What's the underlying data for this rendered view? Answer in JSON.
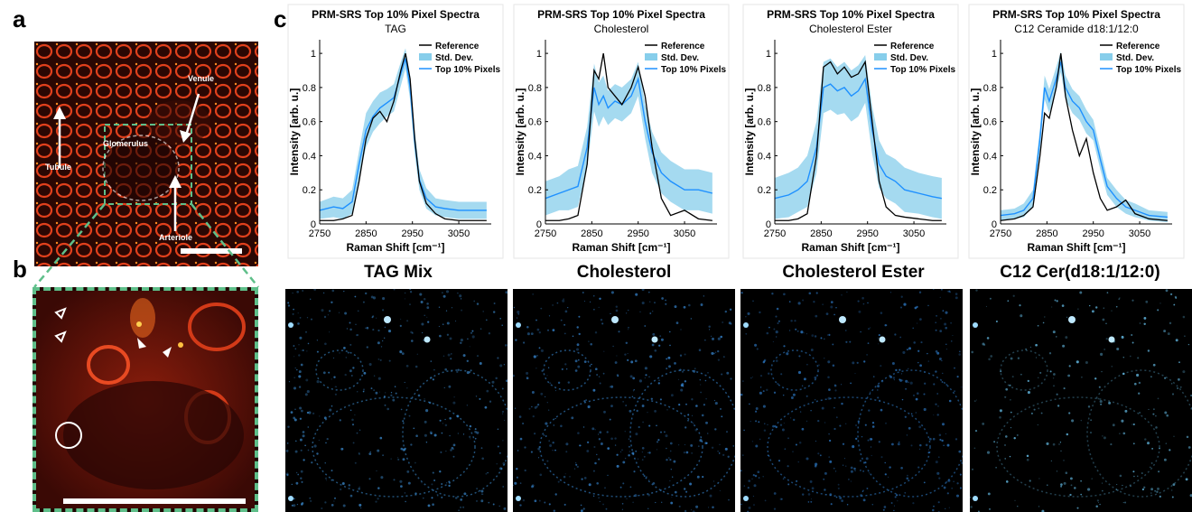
{
  "panels": {
    "a": "a",
    "b": "b",
    "c": "c"
  },
  "panel_a": {
    "labels": {
      "venule": "Venule",
      "glomerulus": "Glomerulus",
      "tubule": "Tubule",
      "arteriole": "Arteriole"
    }
  },
  "image_labels": [
    "TAG Mix",
    "Cholesterol",
    "Cholesterol Ester",
    "C12 Cer(d18:1/12:0)"
  ],
  "colors": {
    "reference": "#000000",
    "std_dev": "#87ceeb",
    "top10": "#1e90ff",
    "inset_frame": "#5fbf8a",
    "tissue": "#c8281a"
  },
  "chart_data": [
    {
      "type": "line",
      "title": "PRM-SRS Top 10% Pixel Spectra",
      "subtitle": "TAG",
      "xlabel": "Raman Shift [cm⁻¹]",
      "ylabel": "Intensity [arb. u.]",
      "xlim": [
        2750,
        3120
      ],
      "ylim": [
        0,
        1.08
      ],
      "xticks": [
        "2750",
        "2850",
        "2950",
        "3050"
      ],
      "yticks": [
        "0",
        "0.2",
        "0.4",
        "0.6",
        "0.8",
        "1"
      ],
      "legend": [
        "Reference",
        "Std. Dev.",
        "Top 10% Pixels"
      ],
      "legend_position": "top-right",
      "x": [
        2750,
        2780,
        2800,
        2820,
        2835,
        2850,
        2865,
        2880,
        2895,
        2910,
        2925,
        2935,
        2945,
        2955,
        2965,
        2980,
        3000,
        3020,
        3050,
        3080,
        3110
      ],
      "series": [
        {
          "name": "Reference",
          "values": [
            0.02,
            0.02,
            0.03,
            0.05,
            0.25,
            0.5,
            0.62,
            0.66,
            0.6,
            0.72,
            0.9,
            1.0,
            0.85,
            0.5,
            0.25,
            0.12,
            0.06,
            0.03,
            0.02,
            0.02,
            0.02
          ]
        },
        {
          "name": "Top 10% Pixels",
          "values": [
            0.08,
            0.1,
            0.09,
            0.13,
            0.35,
            0.55,
            0.63,
            0.68,
            0.71,
            0.74,
            0.88,
            0.97,
            0.8,
            0.48,
            0.26,
            0.15,
            0.1,
            0.09,
            0.08,
            0.08,
            0.08
          ]
        },
        {
          "name": "Std. Dev.",
          "values": [
            0.05,
            0.06,
            0.06,
            0.07,
            0.08,
            0.1,
            0.09,
            0.09,
            0.08,
            0.08,
            0.07,
            0.06,
            0.07,
            0.07,
            0.06,
            0.06,
            0.05,
            0.05,
            0.05,
            0.05,
            0.05
          ]
        }
      ]
    },
    {
      "type": "line",
      "title": "PRM-SRS Top 10% Pixel Spectra",
      "subtitle": "Cholesterol",
      "xlabel": "Raman Shift [cm⁻¹]",
      "ylabel": "Intensity [arb. u.]",
      "xlim": [
        2750,
        3120
      ],
      "ylim": [
        0,
        1.08
      ],
      "xticks": [
        "2750",
        "2850",
        "2950",
        "3050"
      ],
      "yticks": [
        "0",
        "0.2",
        "0.4",
        "0.6",
        "0.8",
        "1"
      ],
      "legend": [
        "Reference",
        "Std. Dev.",
        "Top 10% Pixels"
      ],
      "legend_position": "top-right",
      "x": [
        2750,
        2780,
        2800,
        2820,
        2840,
        2855,
        2865,
        2875,
        2885,
        2900,
        2915,
        2935,
        2950,
        2965,
        2980,
        3000,
        3020,
        3050,
        3080,
        3110
      ],
      "series": [
        {
          "name": "Reference",
          "values": [
            0.02,
            0.02,
            0.03,
            0.05,
            0.35,
            0.9,
            0.85,
            1.0,
            0.8,
            0.75,
            0.7,
            0.8,
            0.92,
            0.75,
            0.45,
            0.15,
            0.05,
            0.08,
            0.03,
            0.02
          ]
        },
        {
          "name": "Top 10% Pixels",
          "values": [
            0.15,
            0.18,
            0.2,
            0.22,
            0.45,
            0.8,
            0.7,
            0.75,
            0.68,
            0.72,
            0.7,
            0.75,
            0.85,
            0.6,
            0.42,
            0.3,
            0.25,
            0.2,
            0.2,
            0.18
          ]
        },
        {
          "name": "Std. Dev.",
          "values": [
            0.1,
            0.1,
            0.12,
            0.12,
            0.12,
            0.14,
            0.13,
            0.12,
            0.1,
            0.1,
            0.1,
            0.1,
            0.1,
            0.1,
            0.12,
            0.12,
            0.12,
            0.12,
            0.12,
            0.12
          ]
        }
      ]
    },
    {
      "type": "line",
      "title": "PRM-SRS Top 10% Pixel Spectra",
      "subtitle": "Cholesterol Ester",
      "xlabel": "Raman Shift [cm⁻¹]",
      "ylabel": "Intensity [arb. u.]",
      "xlim": [
        2750,
        3120
      ],
      "ylim": [
        0,
        1.08
      ],
      "xticks": [
        "2750",
        "2850",
        "2950",
        "3050"
      ],
      "yticks": [
        "0",
        "0.2",
        "0.4",
        "0.6",
        "0.8",
        "1"
      ],
      "legend": [
        "Reference",
        "Std. Dev.",
        "Top 10% Pixels"
      ],
      "legend_position": "top-right",
      "x": [
        2750,
        2780,
        2800,
        2820,
        2840,
        2855,
        2870,
        2885,
        2900,
        2915,
        2930,
        2945,
        2960,
        2975,
        2990,
        3010,
        3030,
        3060,
        3090,
        3110
      ],
      "series": [
        {
          "name": "Reference",
          "values": [
            0.02,
            0.02,
            0.03,
            0.06,
            0.4,
            0.92,
            0.95,
            0.88,
            0.92,
            0.86,
            0.88,
            0.95,
            0.6,
            0.25,
            0.1,
            0.05,
            0.04,
            0.03,
            0.02,
            0.02
          ]
        },
        {
          "name": "Top 10% Pixels",
          "values": [
            0.15,
            0.17,
            0.2,
            0.25,
            0.45,
            0.8,
            0.82,
            0.78,
            0.8,
            0.75,
            0.78,
            0.85,
            0.55,
            0.35,
            0.28,
            0.25,
            0.2,
            0.18,
            0.16,
            0.15
          ]
        },
        {
          "name": "Std. Dev.",
          "values": [
            0.12,
            0.13,
            0.13,
            0.15,
            0.15,
            0.15,
            0.15,
            0.14,
            0.15,
            0.15,
            0.15,
            0.14,
            0.14,
            0.14,
            0.13,
            0.13,
            0.13,
            0.12,
            0.12,
            0.12
          ]
        }
      ]
    },
    {
      "type": "line",
      "title": "PRM-SRS Top 10% Pixel Spectra",
      "subtitle": "C12 Ceramide d18:1/12:0",
      "xlabel": "Raman Shift [cm⁻¹]",
      "ylabel": "Intensity [arb. u.]",
      "xlim": [
        2750,
        3120
      ],
      "ylim": [
        0,
        1.08
      ],
      "xticks": [
        "2750",
        "2850",
        "2950",
        "3050"
      ],
      "yticks": [
        "0",
        "0.2",
        "0.4",
        "0.6",
        "0.8",
        "1"
      ],
      "legend": [
        "Reference",
        "Std. Dev.",
        "Top 10% Pixels"
      ],
      "legend_position": "top-right",
      "x": [
        2750,
        2780,
        2800,
        2820,
        2835,
        2845,
        2855,
        2870,
        2880,
        2890,
        2905,
        2920,
        2935,
        2950,
        2965,
        2980,
        3000,
        3020,
        3040,
        3070,
        3110
      ],
      "series": [
        {
          "name": "Reference",
          "values": [
            0.02,
            0.03,
            0.05,
            0.1,
            0.4,
            0.65,
            0.62,
            0.8,
            1.0,
            0.75,
            0.55,
            0.4,
            0.5,
            0.3,
            0.15,
            0.08,
            0.1,
            0.14,
            0.06,
            0.03,
            0.02
          ]
        },
        {
          "name": "Top 10% Pixels",
          "values": [
            0.05,
            0.06,
            0.08,
            0.15,
            0.5,
            0.8,
            0.72,
            0.85,
            0.95,
            0.8,
            0.72,
            0.68,
            0.6,
            0.55,
            0.38,
            0.22,
            0.15,
            0.1,
            0.08,
            0.05,
            0.04
          ]
        },
        {
          "name": "Std. Dev.",
          "values": [
            0.03,
            0.03,
            0.04,
            0.05,
            0.06,
            0.07,
            0.07,
            0.07,
            0.06,
            0.07,
            0.07,
            0.07,
            0.07,
            0.06,
            0.06,
            0.05,
            0.05,
            0.04,
            0.04,
            0.03,
            0.03
          ]
        }
      ]
    }
  ]
}
